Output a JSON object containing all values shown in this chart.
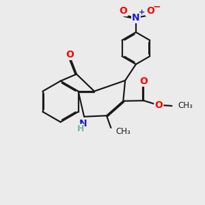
{
  "bg_color": "#ebebeb",
  "bond_color": "#1a1a1a",
  "bond_width": 1.6,
  "dbo": 0.055,
  "font_size": 10,
  "fig_size": [
    3.0,
    3.0
  ],
  "dpi": 100,
  "xlim": [
    0,
    10
  ],
  "ylim": [
    0,
    10
  ]
}
